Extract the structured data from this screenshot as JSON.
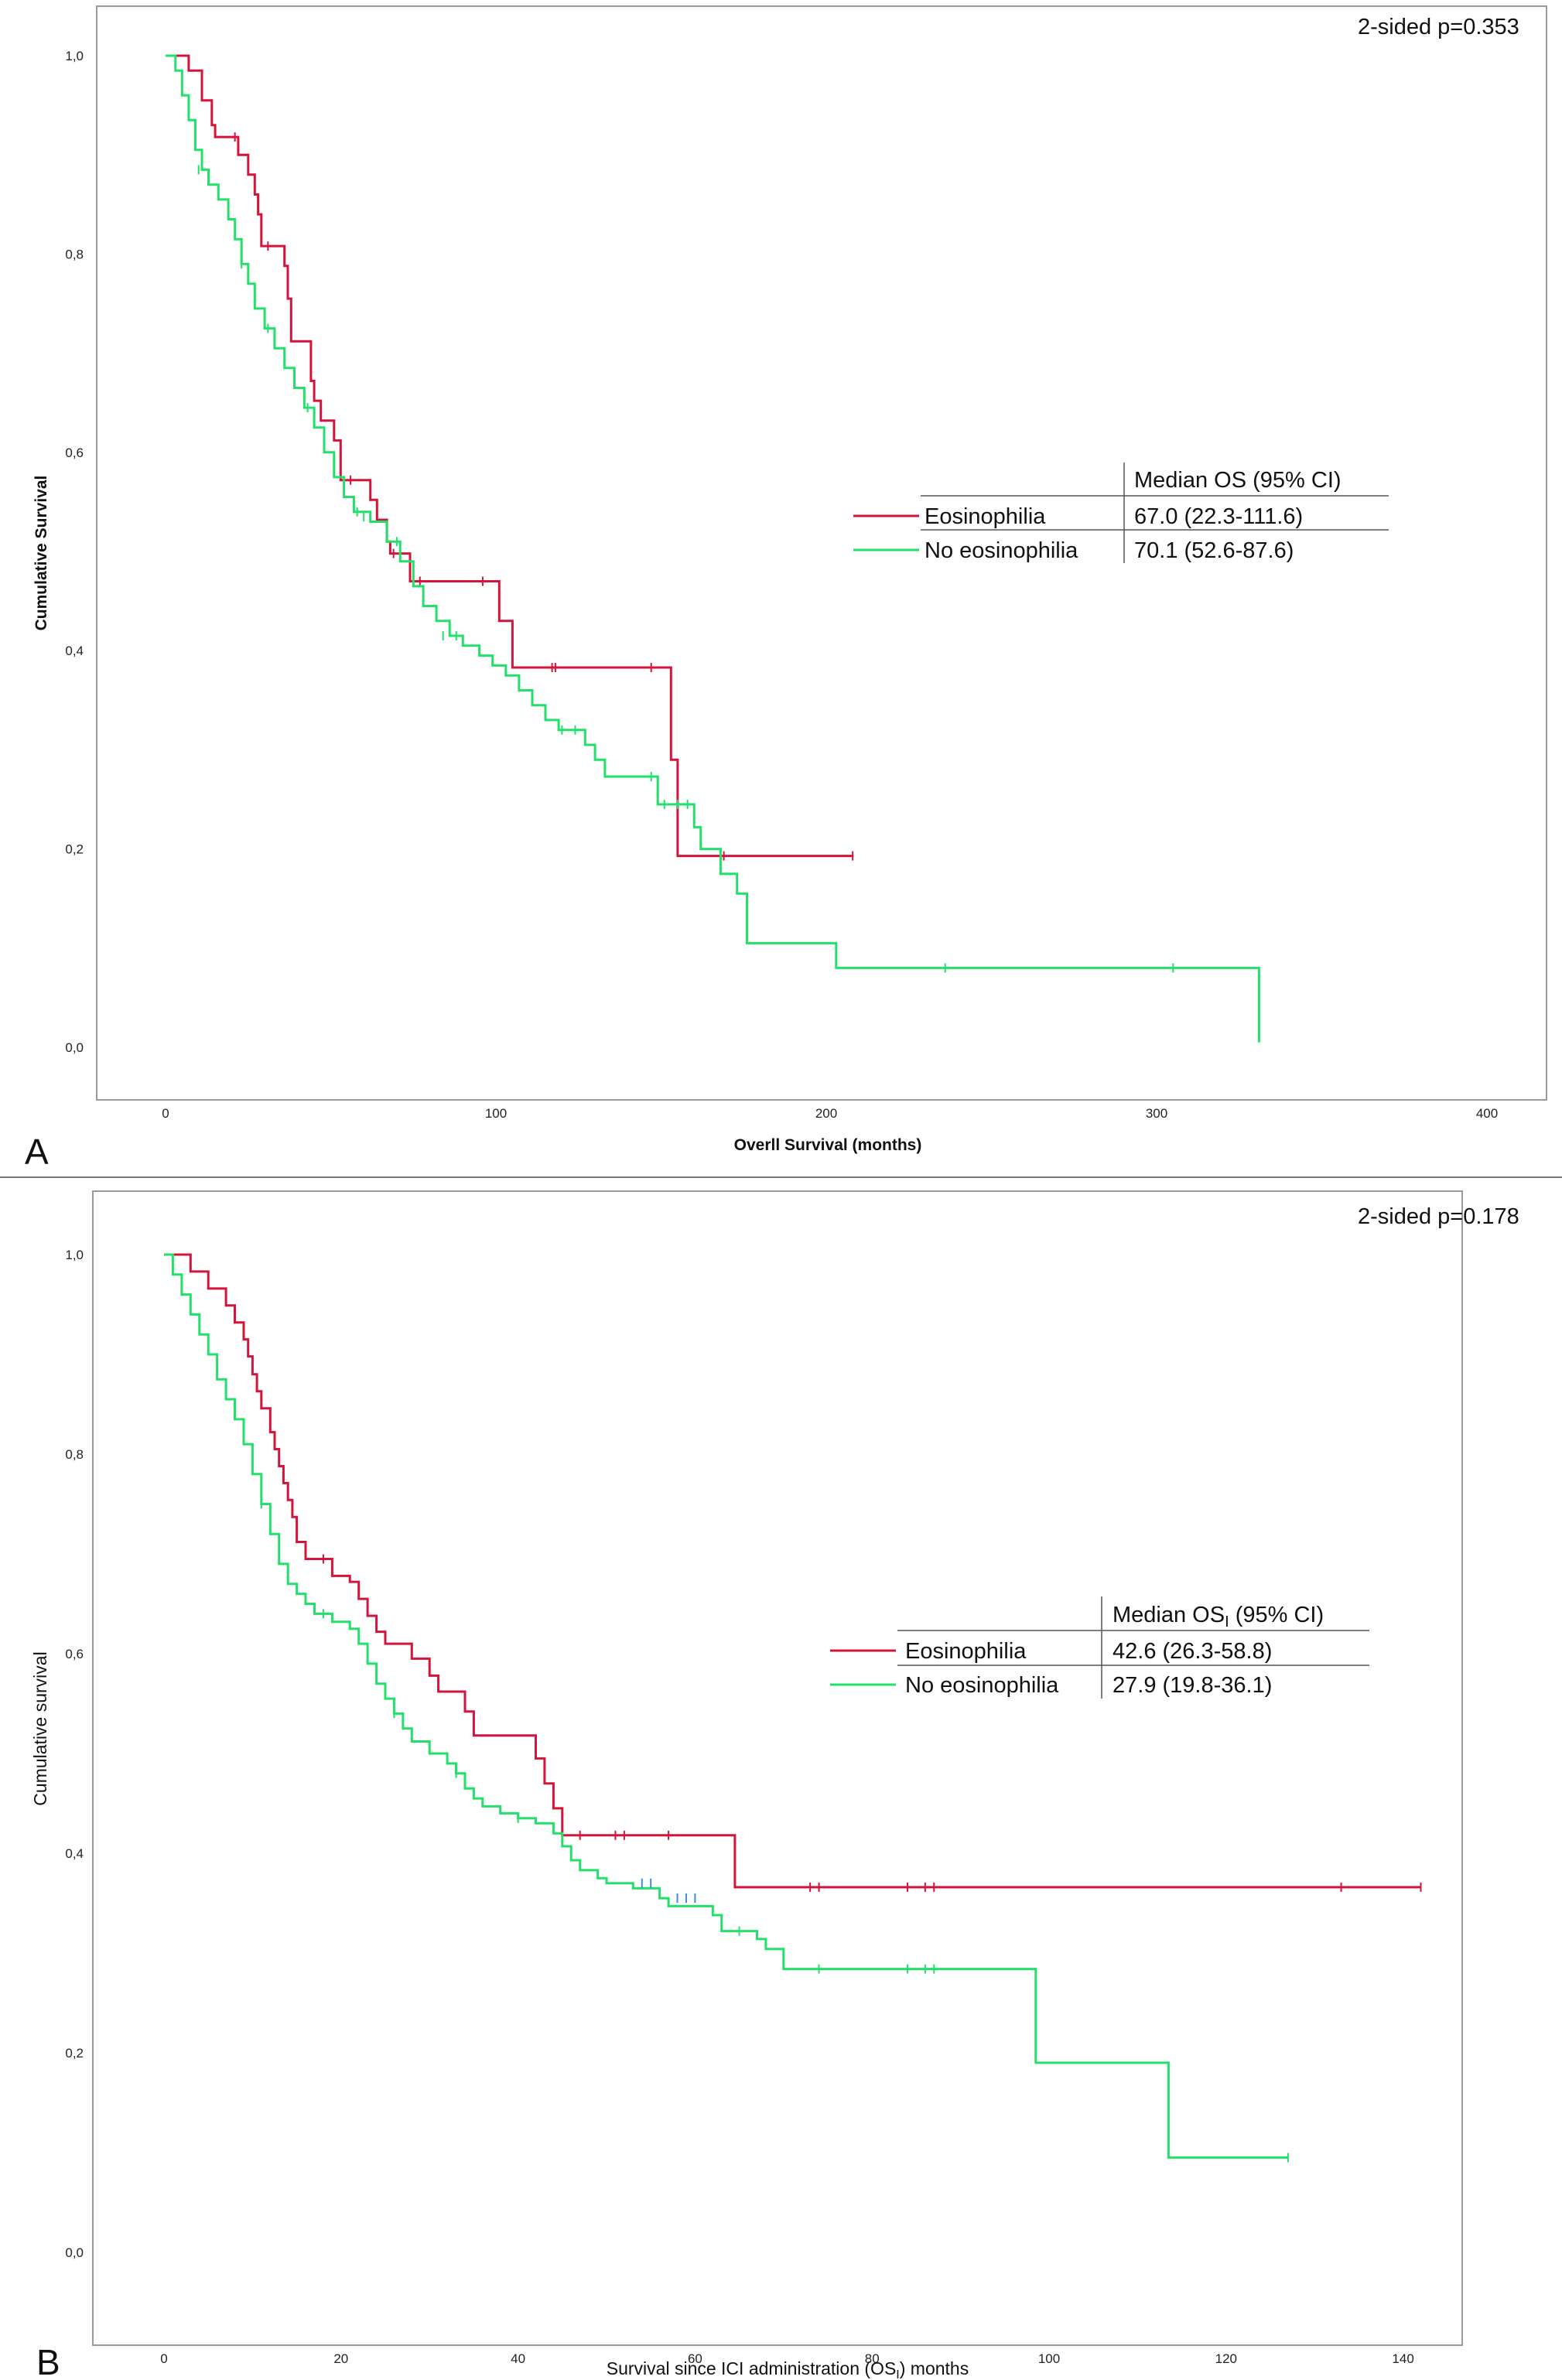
{
  "colors": {
    "eosinophilia": "#d4143a",
    "no_eosinophilia": "#22e06a",
    "censor_blue": "#3a8fd8",
    "frame": "#9a9a9a",
    "text": "#111111"
  },
  "panels": {
    "A": {
      "letter": "A",
      "pvalue": "2-sided p=0.353",
      "legend_header": "Median OS (95% CI)",
      "rows": [
        {
          "label": "Eosinophilia",
          "value": "67.0 (22.3-111.6)"
        },
        {
          "label": "No eosinophilia",
          "value": "70.1 (52.6-87.6)"
        }
      ]
    },
    "B": {
      "letter": "B",
      "pvalue": "2-sided p=0.178",
      "legend_header_pre": "Median OS",
      "legend_header_sub": "I",
      "legend_header_post": " (95% CI)",
      "rows": [
        {
          "label": "Eosinophilia",
          "value": "42.6 (26.3-58.8)"
        },
        {
          "label": "No eosinophilia",
          "value": "27.9 (19.8-36.1)"
        }
      ]
    }
  },
  "chart_data": [
    {
      "type": "line",
      "subtype": "kaplan-meier step",
      "title": "",
      "xlabel": "Overll Survival (months)",
      "ylabel": "Cumulative Survival",
      "xlim": [
        -15,
        405
      ],
      "ylim": [
        -0.05,
        1.05
      ],
      "xticks": [
        0,
        100,
        200,
        300,
        400
      ],
      "xtick_labels": [
        "0",
        "100",
        "200",
        "300",
        "400"
      ],
      "yticks": [
        0,
        0.2,
        0.4,
        0.6,
        0.8,
        1.0
      ],
      "ytick_labels": [
        "0,0",
        "0,2",
        "0,4",
        "0,6",
        "0,8",
        "1,0"
      ],
      "annotation": "2-sided p=0.353",
      "series": [
        {
          "name": "Eosinophilia",
          "color": "#d4143a",
          "steps": [
            [
              0,
              1.0
            ],
            [
              7,
              0.985
            ],
            [
              11,
              0.955
            ],
            [
              14,
              0.93
            ],
            [
              15,
              0.918
            ],
            [
              18,
              0.918
            ],
            [
              20,
              0.918
            ],
            [
              22,
              0.9
            ],
            [
              25,
              0.88
            ],
            [
              27,
              0.86
            ],
            [
              28,
              0.84
            ],
            [
              29,
              0.808
            ],
            [
              34,
              0.808
            ],
            [
              36,
              0.788
            ],
            [
              37,
              0.755
            ],
            [
              38,
              0.712
            ],
            [
              43,
              0.712
            ],
            [
              44,
              0.672
            ],
            [
              45,
              0.652
            ],
            [
              47,
              0.632
            ],
            [
              51,
              0.612
            ],
            [
              53,
              0.572
            ],
            [
              60,
              0.572
            ],
            [
              62,
              0.552
            ],
            [
              64,
              0.532
            ],
            [
              67,
              0.51
            ],
            [
              68,
              0.498
            ],
            [
              72,
              0.498
            ],
            [
              74,
              0.47
            ],
            [
              96,
              0.47
            ],
            [
              99,
              0.47
            ],
            [
              101,
              0.43
            ],
            [
              105,
              0.383
            ],
            [
              152,
              0.383
            ],
            [
              153,
              0.29
            ],
            [
              155,
              0.193
            ],
            [
              208,
              0.193
            ]
          ],
          "censors": [
            [
              21,
              0.918
            ],
            [
              31,
              0.808
            ],
            [
              56,
              0.572
            ],
            [
              69,
              0.498
            ],
            [
              77,
              0.47
            ],
            [
              96,
              0.47
            ],
            [
              117,
              0.383
            ],
            [
              118,
              0.383
            ],
            [
              147,
              0.383
            ],
            [
              169,
              0.193
            ],
            [
              208,
              0.193
            ]
          ]
        },
        {
          "name": "No eosinophilia",
          "color": "#22e06a",
          "steps": [
            [
              0,
              1.0
            ],
            [
              3,
              0.985
            ],
            [
              5,
              0.96
            ],
            [
              7,
              0.935
            ],
            [
              9,
              0.905
            ],
            [
              11,
              0.885
            ],
            [
              13,
              0.87
            ],
            [
              16,
              0.855
            ],
            [
              19,
              0.835
            ],
            [
              21,
              0.815
            ],
            [
              23,
              0.79
            ],
            [
              25,
              0.77
            ],
            [
              27,
              0.745
            ],
            [
              30,
              0.725
            ],
            [
              33,
              0.705
            ],
            [
              36,
              0.685
            ],
            [
              39,
              0.665
            ],
            [
              42,
              0.645
            ],
            [
              45,
              0.625
            ],
            [
              48,
              0.6
            ],
            [
              51,
              0.575
            ],
            [
              54,
              0.555
            ],
            [
              57,
              0.54
            ],
            [
              62,
              0.53
            ],
            [
              67,
              0.51
            ],
            [
              71,
              0.49
            ],
            [
              75,
              0.465
            ],
            [
              78,
              0.445
            ],
            [
              82,
              0.43
            ],
            [
              86,
              0.415
            ],
            [
              90,
              0.405
            ],
            [
              95,
              0.395
            ],
            [
              99,
              0.385
            ],
            [
              103,
              0.375
            ],
            [
              107,
              0.36
            ],
            [
              111,
              0.345
            ],
            [
              115,
              0.33
            ],
            [
              119,
              0.32
            ],
            [
              127,
              0.305
            ],
            [
              130,
              0.29
            ],
            [
              133,
              0.273
            ],
            [
              145,
              0.273
            ],
            [
              149,
              0.245
            ],
            [
              160,
              0.222
            ],
            [
              162,
              0.2
            ],
            [
              168,
              0.175
            ],
            [
              173,
              0.155
            ],
            [
              176,
              0.105
            ],
            [
              202,
              0.105
            ],
            [
              203,
              0.08
            ],
            [
              331,
              0.08
            ],
            [
              331,
              0.005
            ]
          ],
          "censors": [
            [
              10,
              0.885
            ],
            [
              23,
              0.79
            ],
            [
              31,
              0.725
            ],
            [
              43,
              0.645
            ],
            [
              58,
              0.54
            ],
            [
              60,
              0.535
            ],
            [
              70,
              0.51
            ],
            [
              84,
              0.415
            ],
            [
              88,
              0.415
            ],
            [
              120,
              0.32
            ],
            [
              124,
              0.32
            ],
            [
              147,
              0.273
            ],
            [
              151,
              0.245
            ],
            [
              155,
              0.245
            ],
            [
              158,
              0.245
            ],
            [
              236,
              0.08
            ],
            [
              305,
              0.08
            ]
          ]
        }
      ]
    },
    {
      "type": "line",
      "subtype": "kaplan-meier step",
      "title": "",
      "xlabel_pre": "Survival since ICI administration (OS",
      "xlabel_sub": "I",
      "xlabel_post": ") months",
      "ylabel": "Cumulative survival",
      "xlim": [
        -8,
        147
      ],
      "ylim": [
        -0.05,
        1.05
      ],
      "xticks": [
        0,
        20,
        40,
        60,
        80,
        100,
        120,
        140
      ],
      "xtick_labels": [
        "0",
        "20",
        "40",
        "60",
        "80",
        "100",
        "120",
        "140"
      ],
      "yticks": [
        0,
        0.2,
        0.4,
        0.6,
        0.8,
        1.0
      ],
      "ytick_labels": [
        "0,0",
        "0,2",
        "0,4",
        "0,6",
        "0,8",
        "1,0"
      ],
      "annotation": "2-sided p=0.178",
      "series": [
        {
          "name": "Eosinophilia",
          "color": "#d4143a",
          "steps": [
            [
              0,
              1.0
            ],
            [
              3,
              0.983
            ],
            [
              5,
              0.966
            ],
            [
              7,
              0.949
            ],
            [
              8,
              0.932
            ],
            [
              9,
              0.915
            ],
            [
              9.5,
              0.898
            ],
            [
              10,
              0.88
            ],
            [
              10.5,
              0.863
            ],
            [
              11,
              0.846
            ],
            [
              12,
              0.822
            ],
            [
              12.5,
              0.805
            ],
            [
              13,
              0.788
            ],
            [
              13.5,
              0.771
            ],
            [
              14,
              0.754
            ],
            [
              14.5,
              0.737
            ],
            [
              15,
              0.712
            ],
            [
              16,
              0.695
            ],
            [
              18,
              0.695
            ],
            [
              19,
              0.678
            ],
            [
              21,
              0.672
            ],
            [
              22,
              0.655
            ],
            [
              23,
              0.638
            ],
            [
              24,
              0.622
            ],
            [
              25,
              0.61
            ],
            [
              28,
              0.595
            ],
            [
              30,
              0.578
            ],
            [
              31,
              0.562
            ],
            [
              34,
              0.542
            ],
            [
              35,
              0.518
            ],
            [
              41,
              0.518
            ],
            [
              42,
              0.495
            ],
            [
              43,
              0.47
            ],
            [
              44,
              0.445
            ],
            [
              45,
              0.418
            ],
            [
              55,
              0.418
            ],
            [
              57,
              0.418
            ],
            [
              64,
              0.418
            ],
            [
              64.5,
              0.366
            ],
            [
              142,
              0.366
            ]
          ],
          "censors": [
            [
              18,
              0.695
            ],
            [
              47,
              0.418
            ],
            [
              51,
              0.418
            ],
            [
              52,
              0.418
            ],
            [
              57,
              0.418
            ],
            [
              73,
              0.366
            ],
            [
              74,
              0.366
            ],
            [
              84,
              0.366
            ],
            [
              86,
              0.366
            ],
            [
              87,
              0.366
            ],
            [
              133,
              0.366
            ],
            [
              142,
              0.366
            ]
          ]
        },
        {
          "name": "No eosinophilia",
          "color": "#22e06a",
          "steps": [
            [
              0,
              1.0
            ],
            [
              1,
              0.98
            ],
            [
              2,
              0.96
            ],
            [
              3,
              0.94
            ],
            [
              4,
              0.92
            ],
            [
              5,
              0.9
            ],
            [
              6,
              0.875
            ],
            [
              7,
              0.855
            ],
            [
              8,
              0.835
            ],
            [
              9,
              0.81
            ],
            [
              10,
              0.78
            ],
            [
              11,
              0.75
            ],
            [
              12,
              0.72
            ],
            [
              13,
              0.69
            ],
            [
              14,
              0.67
            ],
            [
              15,
              0.66
            ],
            [
              16,
              0.65
            ],
            [
              17,
              0.64
            ],
            [
              19,
              0.632
            ],
            [
              21,
              0.625
            ],
            [
              22,
              0.61
            ],
            [
              23,
              0.59
            ],
            [
              24,
              0.57
            ],
            [
              25,
              0.555
            ],
            [
              26,
              0.54
            ],
            [
              27,
              0.525
            ],
            [
              28,
              0.512
            ],
            [
              30,
              0.5
            ],
            [
              32,
              0.49
            ],
            [
              33,
              0.48
            ],
            [
              34,
              0.465
            ],
            [
              35,
              0.455
            ],
            [
              36,
              0.447
            ],
            [
              38,
              0.44
            ],
            [
              40,
              0.435
            ],
            [
              42,
              0.43
            ],
            [
              44,
              0.42
            ],
            [
              45,
              0.407
            ],
            [
              46,
              0.393
            ],
            [
              47,
              0.383
            ],
            [
              49,
              0.375
            ],
            [
              50,
              0.37
            ],
            [
              53,
              0.365
            ],
            [
              56,
              0.355
            ],
            [
              57,
              0.347
            ],
            [
              62,
              0.338
            ],
            [
              63,
              0.322
            ],
            [
              67,
              0.314
            ],
            [
              68,
              0.304
            ],
            [
              70,
              0.284
            ],
            [
              98,
              0.284
            ],
            [
              98.5,
              0.19
            ],
            [
              113,
              0.19
            ],
            [
              113.5,
              0.095
            ],
            [
              127,
              0.095
            ]
          ],
          "censors": [
            [
              11,
              0.75
            ],
            [
              18,
              0.64
            ],
            [
              26,
              0.54
            ],
            [
              33,
              0.48
            ],
            [
              40,
              0.435
            ],
            [
              54,
              0.37
            ],
            [
              55,
              0.37
            ],
            [
              58,
              0.355
            ],
            [
              59,
              0.355
            ],
            [
              60,
              0.355
            ],
            [
              65,
              0.322
            ],
            [
              74,
              0.284
            ],
            [
              84,
              0.284
            ],
            [
              86,
              0.284
            ],
            [
              87,
              0.284
            ],
            [
              127,
              0.095
            ]
          ]
        }
      ]
    }
  ]
}
